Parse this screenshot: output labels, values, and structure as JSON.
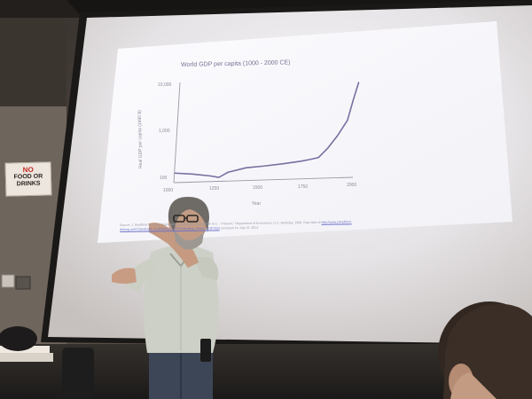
{
  "sign": {
    "line1": "NO",
    "line2": "FOOD OR",
    "line3": "DRINKS"
  },
  "slide": {
    "title": "World GDP per capita (1000 - 2000 CE)",
    "chart_data": {
      "type": "line",
      "title": "World GDP per capita (1000 - 2000 CE)",
      "xlabel": "Year",
      "ylabel": "Real GDP per capita (1990 $)",
      "x_ticks": [
        "1000",
        "1250",
        "1500",
        "1750",
        "2000"
      ],
      "y_ticks": [
        "100",
        "1,000",
        "10,000"
      ],
      "y_scale": "log",
      "xlim": [
        1000,
        2000
      ],
      "ylim": [
        100,
        10000
      ],
      "series": [
        {
          "color": "#7a6ea0",
          "x": [
            1000,
            1100,
            1200,
            1250,
            1300,
            1400,
            1500,
            1600,
            1700,
            1750,
            1800,
            1850,
            1900,
            1950,
            1975,
            2000
          ],
          "y": [
            155,
            145,
            130,
            120,
            150,
            180,
            190,
            205,
            225,
            240,
            260,
            400,
            700,
            1400,
            3500,
            8000
          ]
        }
      ]
    },
    "caption": {
      "text": "Source: J. Bradford DeLong, \"Estimating World GDP, One Million B.C. - Present,\" Department of Economics, U.C. Berkeley, 1998. Raw data at",
      "link": "http://www.j-bradford-delong.net/TCEH/1998_Draft/World_GDP/Estimating_World_GDP.html",
      "tail": "accessed on July 19, 2014"
    }
  }
}
